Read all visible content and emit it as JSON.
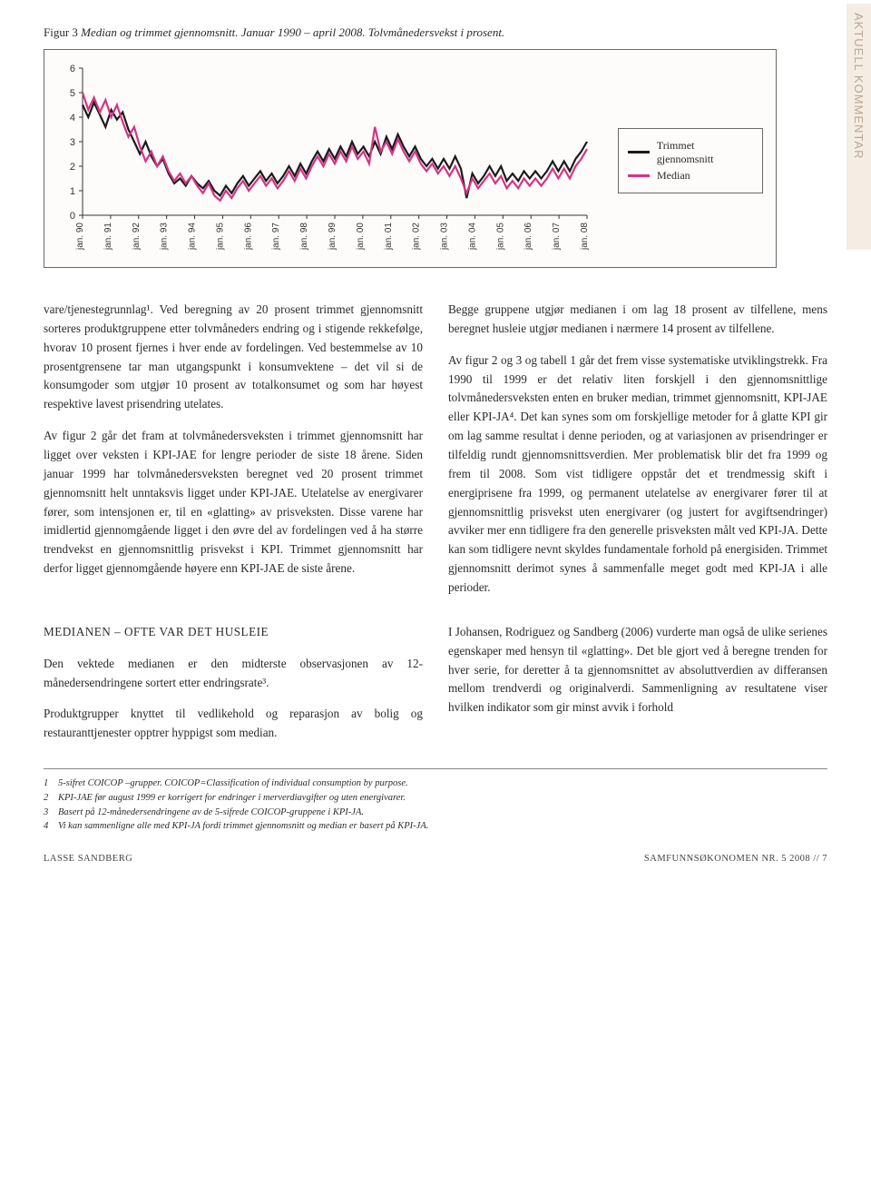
{
  "sidebar_label": "AKTUELL KOMMENTAR",
  "figure": {
    "number": "Figur 3",
    "title": "Median og trimmet gjennomsnitt. Januar 1990 – april 2008. Tolvmånedersvekst i prosent.",
    "chart": {
      "type": "line",
      "ylim": [
        0,
        6
      ],
      "ytick_step": 1,
      "x_categories": [
        "jan. 90",
        "jan. 91",
        "jan. 92",
        "jan. 93",
        "jan. 94",
        "jan. 95",
        "jan. 96",
        "jan. 97",
        "jan. 98",
        "jan. 99",
        "jan. 00",
        "jan. 01",
        "jan. 02",
        "jan. 03",
        "jan. 04",
        "jan. 05",
        "jan. 06",
        "jan. 07",
        "jan. 08"
      ],
      "background_color": "#fdfcfa",
      "axis_color": "#333333",
      "series": [
        {
          "name": "Trimmet gjennomsnitt",
          "color": "#1a1a1a",
          "line_width": 2.2,
          "values": [
            4.5,
            4.0,
            4.6,
            4.1,
            3.6,
            4.3,
            3.9,
            4.2,
            3.5,
            3.0,
            2.5,
            3.0,
            2.4,
            2.0,
            2.3,
            1.7,
            1.3,
            1.5,
            1.2,
            1.6,
            1.3,
            1.1,
            1.4,
            1.0,
            0.8,
            1.2,
            0.9,
            1.3,
            1.6,
            1.2,
            1.5,
            1.8,
            1.4,
            1.7,
            1.3,
            1.6,
            2.0,
            1.6,
            2.1,
            1.7,
            2.2,
            2.6,
            2.2,
            2.7,
            2.3,
            2.8,
            2.4,
            3.0,
            2.5,
            2.8,
            2.4,
            3.0,
            2.5,
            3.2,
            2.7,
            3.3,
            2.8,
            2.4,
            2.8,
            2.3,
            2.0,
            2.3,
            1.9,
            2.3,
            1.9,
            2.4,
            1.9,
            0.7,
            1.7,
            1.3,
            1.6,
            2.0,
            1.6,
            2.0,
            1.4,
            1.7,
            1.4,
            1.8,
            1.5,
            1.8,
            1.5,
            1.8,
            2.2,
            1.8,
            2.2,
            1.8,
            2.3,
            2.6,
            3.0
          ]
        },
        {
          "name": "Median",
          "color": "#d63384",
          "line_width": 2.2,
          "values": [
            5.0,
            4.3,
            4.8,
            4.2,
            4.7,
            4.0,
            4.5,
            3.8,
            3.2,
            3.6,
            2.8,
            2.2,
            2.6,
            2.0,
            2.4,
            1.8,
            1.4,
            1.7,
            1.3,
            1.6,
            1.2,
            0.9,
            1.3,
            0.8,
            0.6,
            1.0,
            0.7,
            1.1,
            1.4,
            1.0,
            1.3,
            1.6,
            1.2,
            1.5,
            1.1,
            1.4,
            1.8,
            1.4,
            1.9,
            1.5,
            2.0,
            2.4,
            2.0,
            2.5,
            2.1,
            2.6,
            2.2,
            2.8,
            2.3,
            2.6,
            2.1,
            3.6,
            2.6,
            3.0,
            2.5,
            3.1,
            2.6,
            2.2,
            2.6,
            2.1,
            1.8,
            2.1,
            1.7,
            2.0,
            1.6,
            2.0,
            1.5,
            0.9,
            1.5,
            1.1,
            1.4,
            1.7,
            1.3,
            1.6,
            1.1,
            1.4,
            1.1,
            1.5,
            1.2,
            1.5,
            1.2,
            1.5,
            1.9,
            1.5,
            1.9,
            1.5,
            2.0,
            2.3,
            2.7
          ]
        }
      ],
      "legend": {
        "items": [
          "Trimmet gjennomsnitt",
          "Median"
        ]
      }
    }
  },
  "body": {
    "left": {
      "p1": "vare/tjenestegrunnlag¹. Ved beregning av 20 prosent trimmet gjennomsnitt sorteres produktgruppene etter tolvmåneders endring og i stigende rekkefølge, hvorav 10 prosent fjernes i hver ende av fordelingen. Ved bestemmelse av 10 prosentgrensene tar man utgangspunkt i konsumvektene – det vil si de konsumgoder som utgjør 10 prosent av totalkonsumet og som har høyest respektive lavest prisendring utelates.",
      "p2": "Av figur 2 går det fram at tolvmånedersveksten i trimmet gjennomsnitt har ligget over veksten i KPI-JAE for lengre perioder de siste 18 årene. Siden januar 1999 har tolvmånedersveksten beregnet ved 20 prosent trimmet gjennomsnitt helt unntaksvis ligget under KPI-JAE. Utelatelse av energivarer fører, som intensjonen er, til en «glatting» av prisveksten. Disse varene har imidlertid gjennomgående ligget i den øvre del av fordelingen ved å ha større trendvekst en gjennomsnittlig prisvekst i KPI. Trimmet gjennomsnitt har derfor ligget gjennomgående høyere enn KPI-JAE de siste årene.",
      "h1": "MEDIANEN – OFTE VAR DET HUSLEIE",
      "p3": "Den vektede medianen er den midterste observasjonen av 12-månedersendringene sortert etter endringsrate³.",
      "p4": "Produktgrupper knyttet til vedlikehold og reparasjon av bolig og restauranttjenester opptrer hyppigst som median."
    },
    "right": {
      "p1": "Begge gruppene utgjør medianen i om lag 18 prosent av tilfellene, mens beregnet husleie utgjør medianen i nærmere 14 prosent av tilfellene.",
      "p2": "Av figur 2 og 3 og tabell 1 går det frem visse systematiske utviklingstrekk. Fra 1990 til 1999 er det relativ liten forskjell i den gjennomsnittlige tolvmånedersveksten enten en bruker median, trimmet gjennomsnitt, KPI-JAE eller KPI-JA⁴. Det kan synes som om forskjellige metoder for å glatte KPI gir om lag samme resultat i denne perioden, og at variasjonen av prisendringer er tilfeldig rundt gjennomsnittsverdien. Mer problematisk blir det fra 1999 og frem til 2008. Som vist tidligere oppstår det et trendmessig skift i energiprisene fra 1999, og permanent utelatelse av energivarer fører til at gjennomsnittlig prisvekst uten energivarer (og justert for avgiftsendringer) avviker mer enn tidligere fra den generelle prisveksten målt ved KPI-JA. Dette kan som tidligere nevnt skyldes fundamentale forhold på energisiden. Trimmet gjennomsnitt derimot synes å sammenfalle meget godt med KPI-JA i alle perioder.",
      "p3": "I Johansen, Rodriguez og Sandberg (2006) vurderte man også de ulike serienes egenskaper med hensyn til «glatting». Det ble gjort ved å beregne trenden for hver serie, for deretter å ta gjennomsnittet av absoluttverdien av differansen mellom trendverdi og originalverdi. Sammenligning av resultatene viser hvilken indikator som gir minst avvik i forhold"
    }
  },
  "footnotes": [
    {
      "num": "1",
      "text": "5-sifret COICOP –grupper. COICOP=Classification of individual consumption by purpose."
    },
    {
      "num": "2",
      "text": "KPI-JAE før august 1999 er korrigert for endringer i merverdiavgifter og uten energivarer."
    },
    {
      "num": "3",
      "text": "Basert på 12-månedersendringene av de 5-sifrede COICOP-gruppene i KPI-JA."
    },
    {
      "num": "4",
      "text": "Vi kan sammenligne alle med KPI-JA fordi trimmet gjennomsnitt og median er basert på KPI-JA."
    }
  ],
  "footer": {
    "left": "LASSE SANDBERG",
    "right": "SAMFUNNSØKONOMEN NR. 5 2008  //  7"
  }
}
